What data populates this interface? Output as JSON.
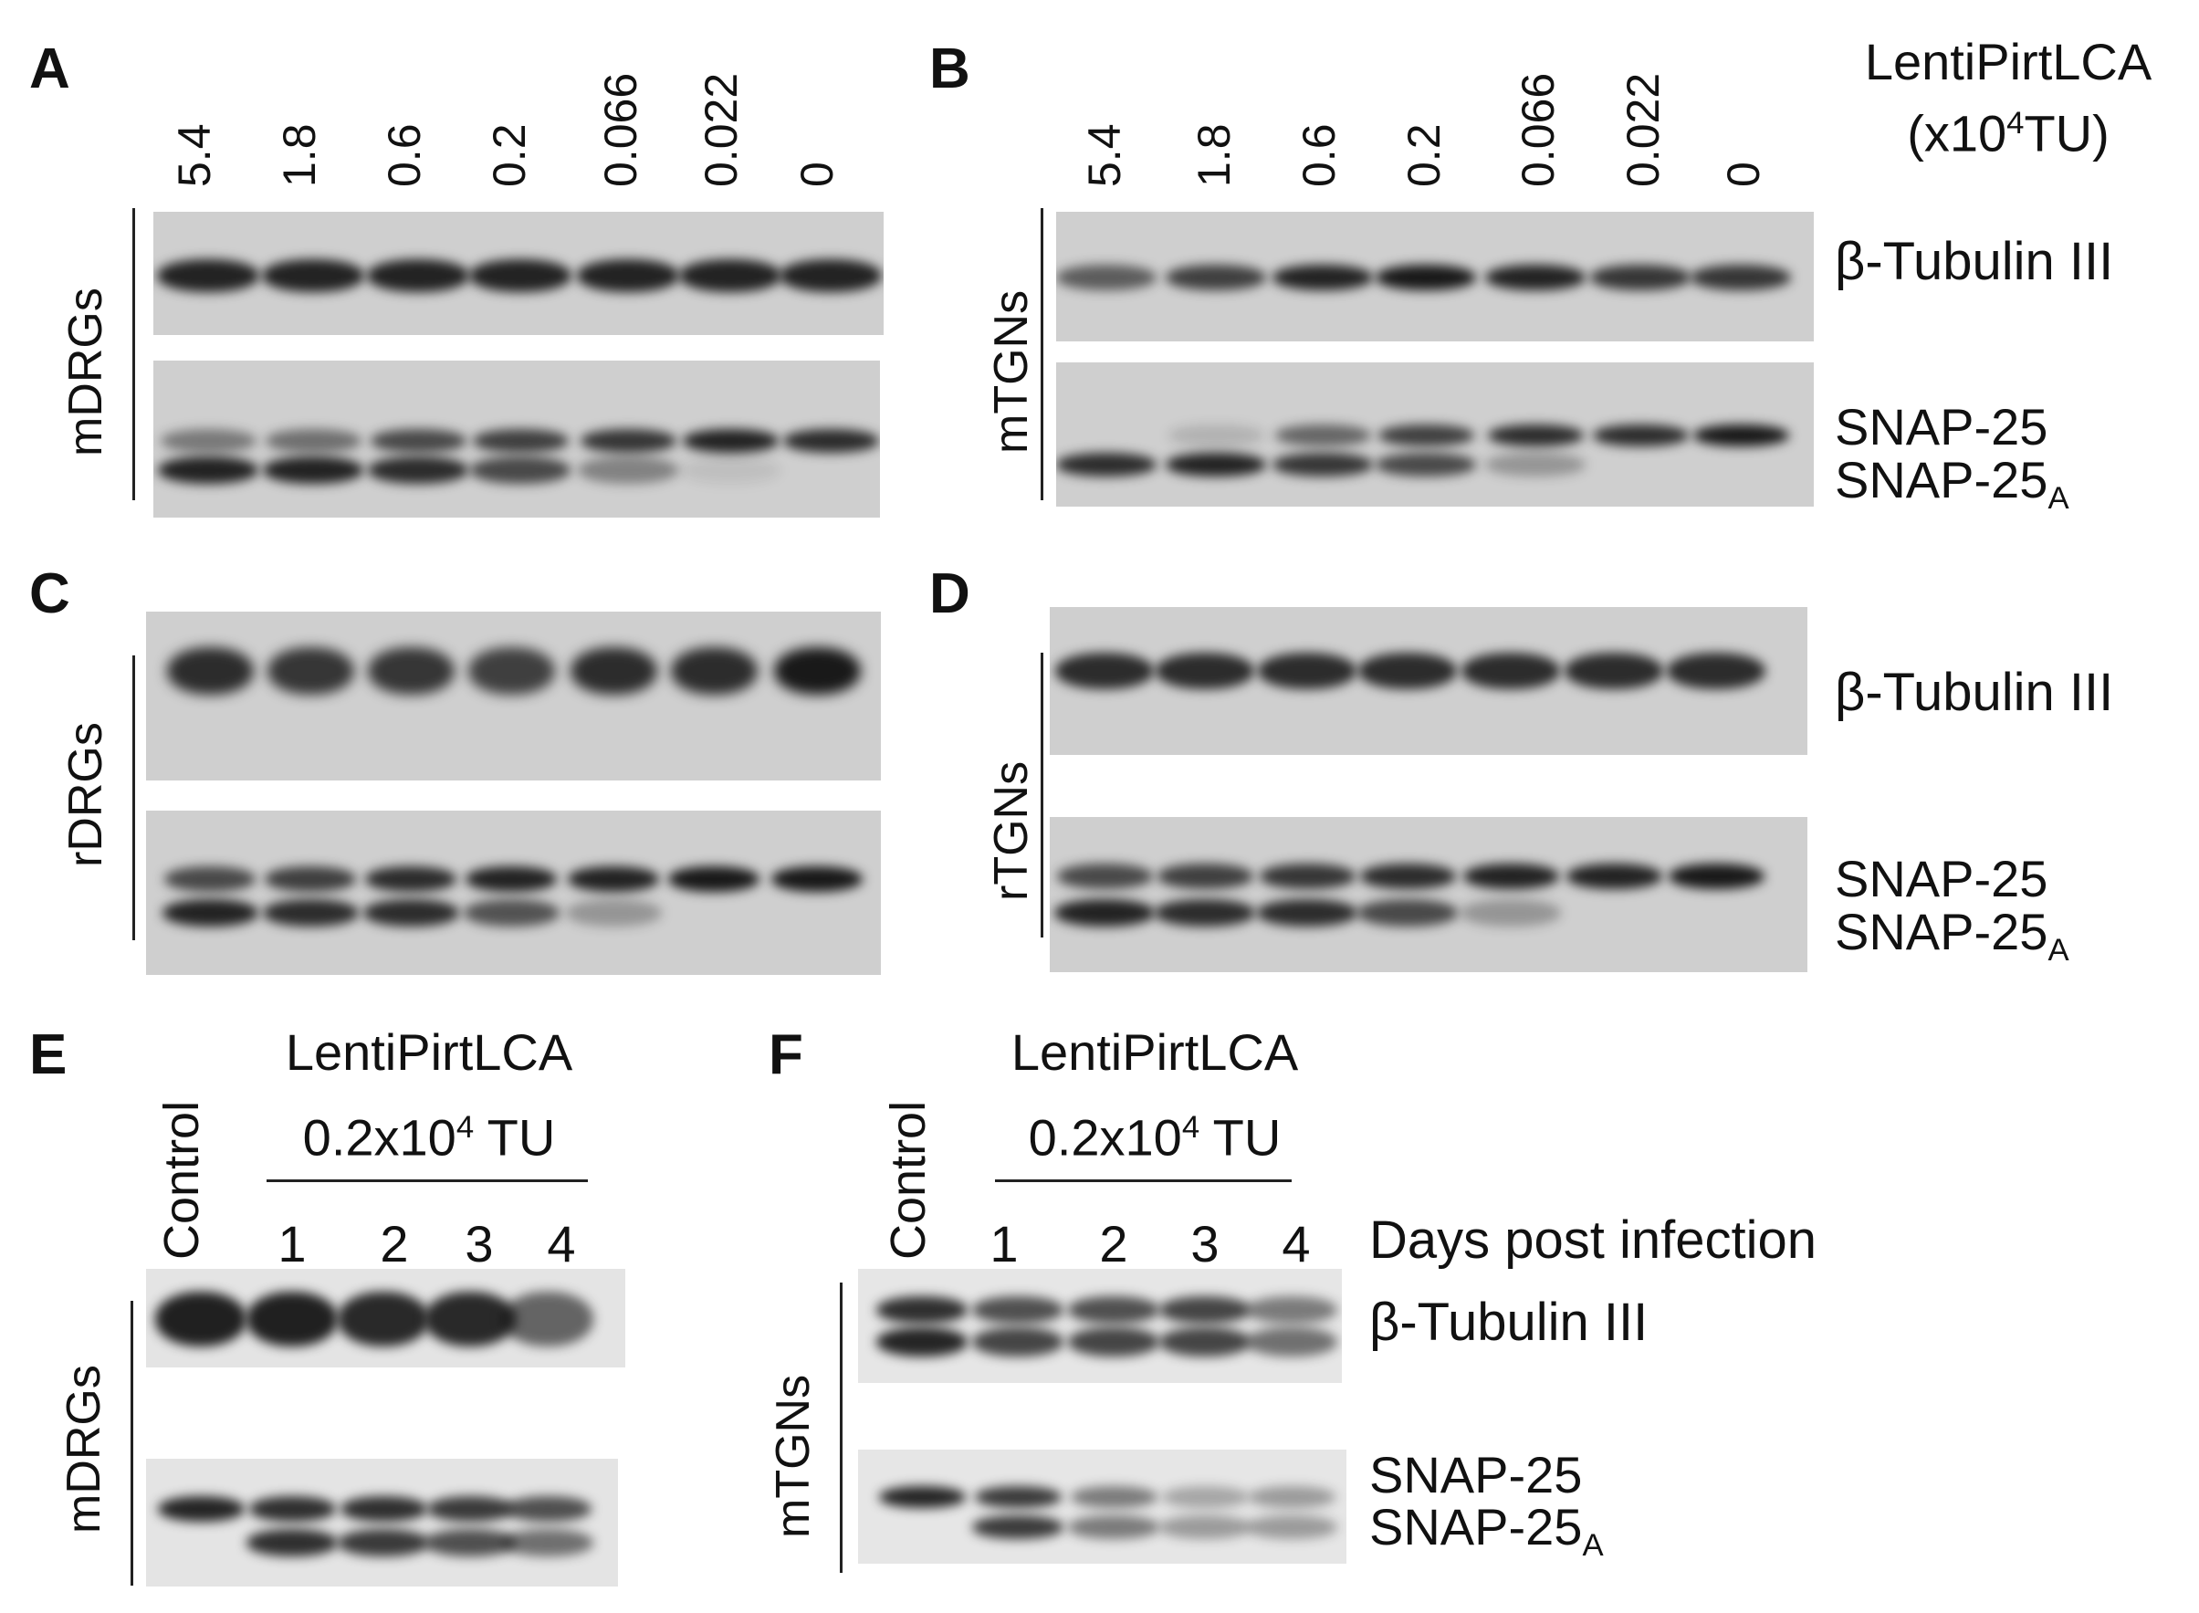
{
  "header": {
    "treatment": "LentiPirtLCA",
    "unit_prefix": "(x10",
    "unit_exp": "4",
    "unit_suffix": "TU)"
  },
  "proteins": {
    "tubulin": "β-Tubulin III",
    "snap25": "SNAP-25",
    "snap25_cleaved": "SNAP-25",
    "cleaved_sub": "A"
  },
  "panels": {
    "A": {
      "label": "A",
      "row": "mDRGs",
      "lanes": [
        "5.4",
        "1.8",
        "0.6",
        "0.2",
        "0.066",
        "0.022",
        "0"
      ]
    },
    "B": {
      "label": "B",
      "row": "mTGNs",
      "lanes": [
        "5.4",
        "1.8",
        "0.6",
        "0.2",
        "0.066",
        "0.022",
        "0"
      ]
    },
    "C": {
      "label": "C",
      "row": "rDRGs"
    },
    "D": {
      "label": "D",
      "row": "rTGNs"
    },
    "E": {
      "label": "E",
      "row": "mDRGs",
      "control": "Control",
      "treatment": "LentiPirtLCA",
      "dose_prefix": "0.2x10",
      "dose_exp": "4",
      "dose_suffix": " TU",
      "days": [
        "1",
        "2",
        "3",
        "4"
      ]
    },
    "F": {
      "label": "F",
      "row": "mTGNs",
      "control": "Control",
      "treatment": "LentiPirtLCA",
      "dose_prefix": "0.2x10",
      "dose_exp": "4",
      "dose_suffix": " TU",
      "days": [
        "1",
        "2",
        "3",
        "4"
      ],
      "days_label": "Days post infection"
    }
  }
}
